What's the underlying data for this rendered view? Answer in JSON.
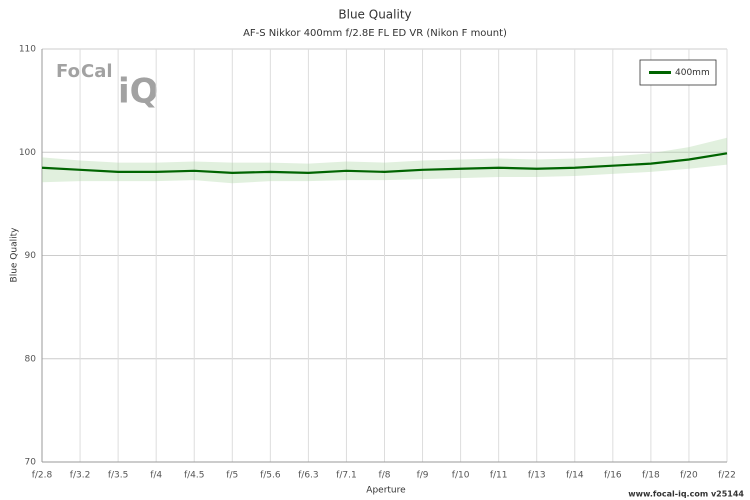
{
  "chart_data": {
    "type": "line",
    "title": "Blue Quality",
    "subtitle": "AF-S Nikkor 400mm f/2.8E FL ED VR (Nikon F mount)",
    "x_label": "Aperture",
    "y_label": "Blue Quality",
    "categories": [
      "f/2.8",
      "f/3.2",
      "f/3.5",
      "f/4",
      "f/4.5",
      "f/5",
      "f/5.6",
      "f/6.3",
      "f/7.1",
      "f/8",
      "f/9",
      "f/10",
      "f/11",
      "f/13",
      "f/14",
      "f/16",
      "f/18",
      "f/20",
      "f/22"
    ],
    "series": [
      {
        "name": "400mm",
        "color": "#006400",
        "band_color": "#a9d3a0",
        "values": [
          98.5,
          98.3,
          98.1,
          98.1,
          98.2,
          98.0,
          98.1,
          98.0,
          98.2,
          98.1,
          98.3,
          98.4,
          98.5,
          98.4,
          98.5,
          98.7,
          98.9,
          99.3,
          99.9
        ],
        "upper": [
          99.5,
          99.2,
          99.0,
          99.0,
          99.1,
          99.0,
          99.0,
          98.9,
          99.1,
          99.0,
          99.2,
          99.3,
          99.4,
          99.3,
          99.4,
          99.6,
          99.9,
          100.5,
          101.4
        ],
        "lower": [
          97.1,
          97.2,
          97.2,
          97.2,
          97.3,
          97.0,
          97.2,
          97.2,
          97.3,
          97.3,
          97.4,
          97.5,
          97.6,
          97.6,
          97.7,
          97.9,
          98.1,
          98.4,
          98.8
        ]
      }
    ],
    "ylim": [
      70,
      110
    ],
    "yticks": [
      70,
      80,
      90,
      100,
      110
    ],
    "grid": true,
    "legend": "top-right",
    "watermark": {
      "left": "Fo",
      "middle": "Cal",
      "bottom": "iQ"
    },
    "footer": "www.focal-iq.com  v25144"
  }
}
